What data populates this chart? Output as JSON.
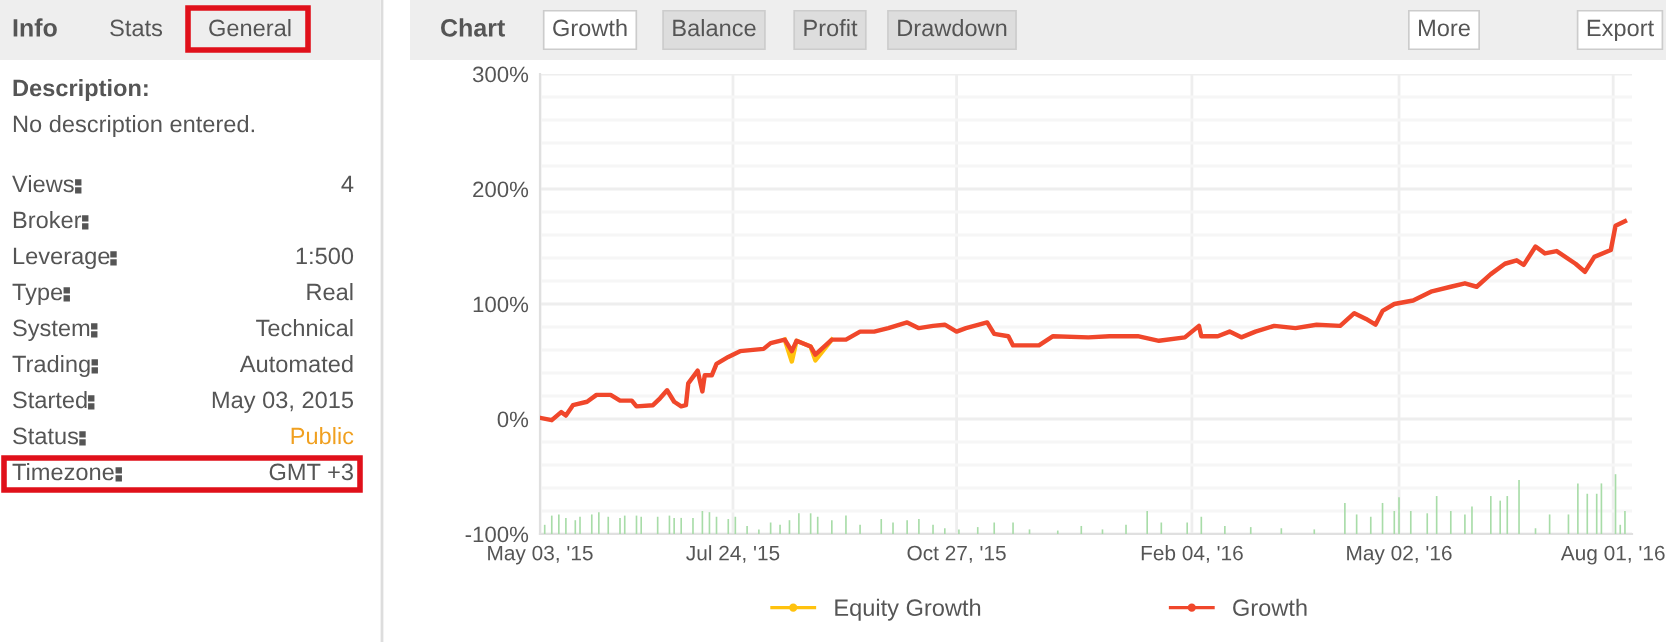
{
  "chart_data": [
    {
      "type": "other",
      "title": "Info",
      "annotations": [
        "Stats",
        "General",
        "Description:",
        "No description entered."
      ],
      "categories": [
        "Views",
        "Broker",
        "Leverage",
        "Type",
        "System",
        "Trading",
        "Started",
        "Status",
        "Timezone"
      ],
      "value_labels": [
        "4",
        null,
        "1:500",
        "Real",
        "Technical",
        "Automated",
        "May 03, 2015",
        "Public",
        "GMT +3"
      ],
      "colors": [
        "#555555",
        "#555555",
        "#555555",
        "#555555",
        "#555555",
        "#555555",
        "#555555",
        "#f0a020",
        "#555555"
      ]
    },
    {
      "type": "line",
      "title": "Chart",
      "annotations": [
        "Growth",
        "Balance",
        "Profit",
        "Drawdown",
        "More",
        "Export"
      ],
      "series": [
        {
          "name": "Equity Growth",
          "color": "#ffc20e",
          "x": [
            "2015-08-15",
            "2015-08-18",
            "2015-08-20",
            "2015-08-26",
            "2015-08-28",
            "2015-09-04"
          ],
          "values": [
            69,
            50,
            68,
            63,
            51,
            69
          ]
        },
        {
          "name": "Growth",
          "color": "#f0472b",
          "x": [
            "2015-05-03",
            "2015-05-08",
            "2015-05-12",
            "2015-05-14",
            "2015-05-17",
            "2015-05-23",
            "2015-05-27",
            "2015-06-02",
            "2015-06-06",
            "2015-06-11",
            "2015-06-13",
            "2015-06-20",
            "2015-06-23",
            "2015-06-26",
            "2015-06-29",
            "2015-07-02",
            "2015-07-04",
            "2015-07-05",
            "2015-07-09",
            "2015-07-11",
            "2015-07-12",
            "2015-07-15",
            "2015-07-17",
            "2015-07-22",
            "2015-07-27",
            "2015-08-06",
            "2015-08-09",
            "2015-08-15",
            "2015-08-18",
            "2015-08-20",
            "2015-08-26",
            "2015-08-28",
            "2015-09-04",
            "2015-09-10",
            "2015-09-16",
            "2015-09-22",
            "2015-09-28",
            "2015-10-06",
            "2015-10-11",
            "2015-10-17",
            "2015-10-22",
            "2015-10-27",
            "2015-10-31",
            "2015-11-09",
            "2015-11-12",
            "2015-11-18",
            "2015-11-20",
            "2015-12-01",
            "2015-12-07",
            "2015-12-22",
            "2015-12-31",
            "2016-01-12",
            "2016-01-21",
            "2016-02-01",
            "2016-02-07",
            "2016-02-08",
            "2016-02-15",
            "2016-02-20",
            "2016-02-25",
            "2016-03-02",
            "2016-03-10",
            "2016-03-19",
            "2016-03-28",
            "2016-04-07",
            "2016-04-13",
            "2016-04-18",
            "2016-04-22",
            "2016-04-25",
            "2016-04-30",
            "2016-05-08",
            "2016-05-16",
            "2016-05-24",
            "2016-05-30",
            "2016-06-04",
            "2016-06-10",
            "2016-06-16",
            "2016-06-21",
            "2016-06-24",
            "2016-06-29",
            "2016-07-03",
            "2016-07-08",
            "2016-07-16",
            "2016-07-20",
            "2016-07-24",
            "2016-07-31",
            "2016-08-02",
            "2016-08-06"
          ],
          "values": [
            1,
            -1,
            6,
            3,
            12,
            15,
            21,
            21,
            16,
            16,
            11,
            12,
            18,
            25,
            15,
            11,
            12,
            31,
            42,
            24,
            38,
            38,
            48,
            54,
            59,
            61,
            66,
            69,
            59,
            68,
            63,
            56,
            69,
            69,
            76,
            76,
            79,
            84,
            79,
            81,
            82,
            76,
            79,
            84,
            74,
            72,
            64,
            64,
            72,
            71,
            72,
            72,
            68,
            71,
            81,
            72,
            72,
            76,
            71,
            76,
            81,
            79,
            82,
            81,
            92,
            87,
            82,
            94,
            100,
            103,
            111,
            115,
            118,
            115,
            126,
            135,
            138,
            134,
            150,
            144,
            146,
            135,
            128,
            141,
            147,
            168,
            172
          ]
        },
        {
          "type": "bar",
          "color": "#a8dca8",
          "x": [
            "2015-05-05",
            "2015-05-08",
            "2015-05-11",
            "2015-05-14",
            "2015-05-18",
            "2015-05-20",
            "2015-05-25",
            "2015-05-28",
            "2015-06-01",
            "2015-06-06",
            "2015-06-08",
            "2015-06-13",
            "2015-06-15",
            "2015-06-22",
            "2015-06-27",
            "2015-06-29",
            "2015-07-02",
            "2015-07-07",
            "2015-07-11",
            "2015-07-14",
            "2015-07-17",
            "2015-07-22",
            "2015-07-25",
            "2015-07-30",
            "2015-08-04",
            "2015-08-09",
            "2015-08-13",
            "2015-08-17",
            "2015-08-21",
            "2015-08-26",
            "2015-08-29",
            "2015-09-04",
            "2015-09-10",
            "2015-09-16",
            "2015-09-25",
            "2015-09-30",
            "2015-10-06",
            "2015-10-11",
            "2015-10-17",
            "2015-10-22",
            "2015-10-28",
            "2015-11-05",
            "2015-11-12",
            "2015-11-20",
            "2015-11-27",
            "2015-12-09",
            "2015-12-19",
            "2015-12-28",
            "2016-01-07",
            "2016-01-16",
            "2016-01-22",
            "2016-02-02",
            "2016-02-08",
            "2016-02-18",
            "2016-02-29",
            "2016-03-13",
            "2016-03-27",
            "2016-04-09",
            "2016-04-14",
            "2016-04-20",
            "2016-04-25",
            "2016-04-30",
            "2016-05-02",
            "2016-05-07",
            "2016-05-14",
            "2016-05-18",
            "2016-05-24",
            "2016-05-30",
            "2016-06-02",
            "2016-06-10",
            "2016-06-14",
            "2016-06-17",
            "2016-06-22",
            "2016-06-29",
            "2016-07-05",
            "2016-07-13",
            "2016-07-17",
            "2016-07-21",
            "2016-07-25",
            "2016-07-27",
            "2016-08-02",
            "2016-08-04",
            "2016-08-06"
          ],
          "values": [
            8,
            16,
            17,
            14,
            12,
            15,
            17,
            19,
            15,
            14,
            16,
            16,
            15,
            15,
            16,
            14,
            14,
            14,
            20,
            19,
            15,
            13,
            15,
            7,
            4,
            10,
            8,
            12,
            18,
            18,
            15,
            12,
            16,
            8,
            13,
            10,
            12,
            13,
            8,
            5,
            4,
            6,
            10,
            10,
            4,
            3,
            7,
            4,
            8,
            20,
            10,
            10,
            15,
            7,
            6,
            5,
            4,
            27,
            17,
            15,
            27,
            20,
            32,
            20,
            18,
            33,
            20,
            17,
            24,
            33,
            29,
            33,
            47,
            5,
            17,
            17,
            44,
            35,
            35,
            44,
            52,
            8,
            20
          ],
          "base": [
            -100,
            -100,
            -100,
            -100,
            -100,
            -100,
            -100,
            -100,
            -100,
            -100,
            -100,
            -100,
            -100,
            -100,
            -100,
            -100,
            -100,
            -100,
            -100,
            -100,
            -100,
            -100,
            -100,
            -100,
            -100,
            -100,
            -100,
            -100,
            -100,
            -100,
            -100,
            -100,
            -100,
            -100,
            -100,
            -100,
            -100,
            -100,
            -100,
            -100,
            -100,
            -100,
            -100,
            -100,
            -100,
            -100,
            -100,
            -100,
            -100,
            -100,
            -100,
            -100,
            -100,
            -100,
            -100,
            -100,
            -100,
            -100,
            -100,
            -100,
            -100,
            -100,
            -100,
            -100,
            -100,
            -100,
            -100,
            -100,
            -100,
            -100,
            -100,
            -100,
            -100,
            -100,
            -100,
            -100,
            -100,
            -100,
            -100,
            -100,
            -100,
            -100,
            -100
          ]
        }
      ],
      "xlim": [
        "2015-05-03",
        "2016-08-09"
      ],
      "xticks": [
        {
          "value": "2015-05-03",
          "label": "May 03, '15"
        },
        {
          "value": "2015-07-24",
          "label": "Jul 24, '15"
        },
        {
          "value": "2015-10-27",
          "label": "Oct 27, '15"
        },
        {
          "value": "2016-02-04",
          "label": "Feb 04, '16"
        },
        {
          "value": "2016-05-02",
          "label": "May 02, '16"
        },
        {
          "value": "2016-08-01",
          "label": "Aug 01, '16"
        }
      ],
      "ylim": [
        -100,
        300
      ],
      "yticks": [
        {
          "value": -100,
          "label": "-100%"
        },
        {
          "value": -80,
          "label": null
        },
        {
          "value": -60,
          "label": null
        },
        {
          "value": -40,
          "label": null
        },
        {
          "value": -20,
          "label": null
        },
        {
          "value": 0,
          "label": "0%"
        },
        {
          "value": 20,
          "label": null
        },
        {
          "value": 40,
          "label": null
        },
        {
          "value": 60,
          "label": null
        },
        {
          "value": 80,
          "label": null
        },
        {
          "value": 100,
          "label": "100%"
        },
        {
          "value": 120,
          "label": null
        },
        {
          "value": 140,
          "label": null
        },
        {
          "value": 160,
          "label": null
        },
        {
          "value": 180,
          "label": null
        },
        {
          "value": 200,
          "label": "200%"
        },
        {
          "value": 220,
          "label": null
        },
        {
          "value": 240,
          "label": null
        },
        {
          "value": 260,
          "label": null
        },
        {
          "value": 280,
          "label": null
        },
        {
          "value": 300,
          "label": "300%"
        }
      ],
      "grid": true,
      "legend": "bottom",
      "marker": "none",
      "line_style": "solid"
    }
  ]
}
